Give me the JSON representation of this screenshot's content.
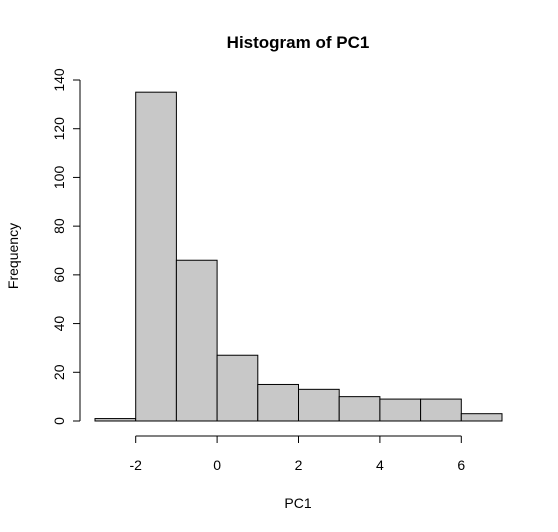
{
  "chart_data": {
    "type": "bar",
    "title": "Histogram of PC1",
    "xlabel": "PC1",
    "ylabel": "Frequency",
    "bins": [
      {
        "start": -3,
        "end": -2,
        "count": 1
      },
      {
        "start": -2,
        "end": -1,
        "count": 135
      },
      {
        "start": -1,
        "end": 0,
        "count": 66
      },
      {
        "start": 0,
        "end": 1,
        "count": 27
      },
      {
        "start": 1,
        "end": 2,
        "count": 15
      },
      {
        "start": 2,
        "end": 3,
        "count": 13
      },
      {
        "start": 3,
        "end": 4,
        "count": 10
      },
      {
        "start": 4,
        "end": 5,
        "count": 9
      },
      {
        "start": 5,
        "end": 6,
        "count": 9
      },
      {
        "start": 6,
        "end": 7,
        "count": 3
      }
    ],
    "xticks": [
      "-2",
      "0",
      "2",
      "4",
      "6"
    ],
    "yticks": [
      "0",
      "20",
      "40",
      "60",
      "80",
      "100",
      "120",
      "140"
    ],
    "xlim": [
      -3,
      7
    ],
    "ylim": [
      0,
      140
    ],
    "grid": false,
    "bar_color": "#c8c8c8"
  }
}
